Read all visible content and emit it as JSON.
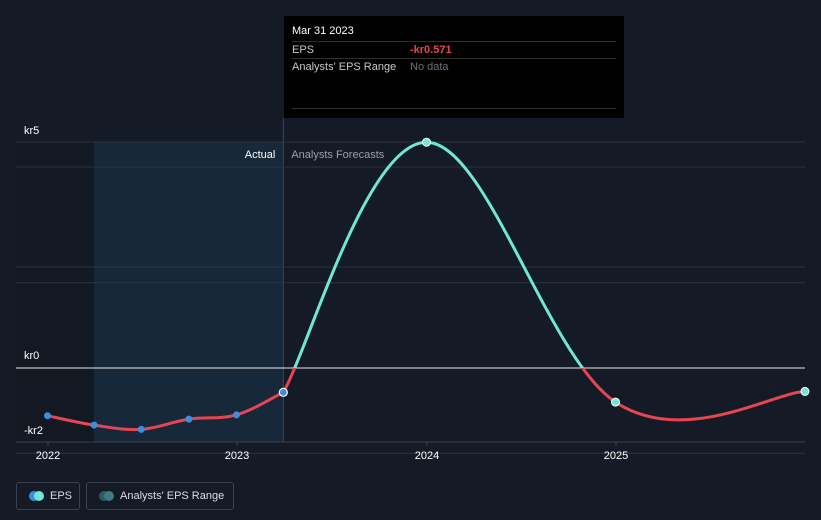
{
  "tooltip": {
    "date": "Mar 31 2023",
    "eps_label": "EPS",
    "eps_value": "-kr0.571",
    "range_label": "Analysts' EPS Range",
    "range_value": "No data"
  },
  "legend": {
    "eps_label": "EPS",
    "range_label": "Analysts' EPS Range"
  },
  "colors": {
    "background": "#151b26",
    "actual_shade": "#17283b",
    "past_line": "#e64552",
    "forecast_line": "#6ee8d2",
    "actual_point": "#3d8fdd",
    "forecast_point": "#6ee8d2",
    "range_dot": "#2b5c66"
  },
  "chart_data": {
    "type": "line",
    "y_unit": "kr",
    "ylim": [
      -2,
      6
    ],
    "y_ticks": [
      {
        "value": 5,
        "label": "kr5"
      },
      {
        "value": 0,
        "label": "kr0"
      },
      {
        "value": -2,
        "label": "-kr2"
      }
    ],
    "x_ticks": [
      "2022",
      "2023",
      "2024",
      "2025"
    ],
    "x_range": [
      "2022-01-01",
      "2025-12-31"
    ],
    "region_labels": {
      "actual": "Actual",
      "forecast": "Analysts Forecasts"
    },
    "actual_start": "2022-03-31",
    "actual_end": "2023-03-31",
    "series": [
      {
        "name": "EPS",
        "kind": "actual",
        "points": [
          {
            "x": "2021-12-31",
            "y": -1.12
          },
          {
            "x": "2022-03-31",
            "y": -1.34
          },
          {
            "x": "2022-06-30",
            "y": -1.44
          },
          {
            "x": "2022-09-30",
            "y": -1.2
          },
          {
            "x": "2022-12-31",
            "y": -1.1
          },
          {
            "x": "2023-03-31",
            "y": -0.571
          }
        ]
      },
      {
        "name": "EPS",
        "kind": "forecast",
        "points": [
          {
            "x": "2023-03-31",
            "y": -0.571
          },
          {
            "x": "2023-12-31",
            "y": 5.3
          },
          {
            "x": "2024-12-31",
            "y": -0.8
          },
          {
            "x": "2025-12-31",
            "y": -0.55
          }
        ]
      }
    ]
  }
}
